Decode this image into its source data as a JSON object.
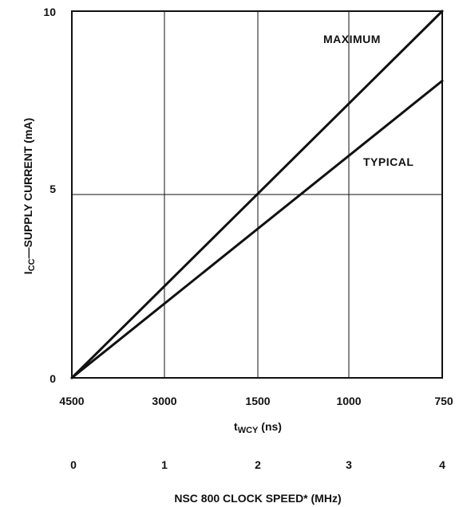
{
  "chart_data": {
    "type": "line",
    "x_top": {
      "tick_labels": [
        "4500",
        "3000",
        "1500",
        "1000",
        "750"
      ],
      "unit_label_main": "t",
      "unit_label_sub": "WCY",
      "unit_label_suffix": " (ns)"
    },
    "x_bottom": {
      "tick_labels": [
        "0",
        "1",
        "2",
        "3",
        "4"
      ],
      "label": "NSC 800 CLOCK SPEED* (MHz)",
      "range": [
        0,
        4
      ]
    },
    "y": {
      "tick_labels": [
        "0",
        "5",
        "10"
      ],
      "label_main": "I",
      "label_sub": "CC",
      "label_suffix": "—SUPPLY CURRENT (mA)",
      "range": [
        0,
        10
      ]
    },
    "grid": true,
    "series": [
      {
        "name": "MAXIMUM",
        "x": [
          0,
          4
        ],
        "y": [
          0,
          10
        ]
      },
      {
        "name": "TYPICAL",
        "x": [
          0,
          4
        ],
        "y": [
          0,
          8.1
        ]
      }
    ],
    "line_color": "#111111"
  }
}
